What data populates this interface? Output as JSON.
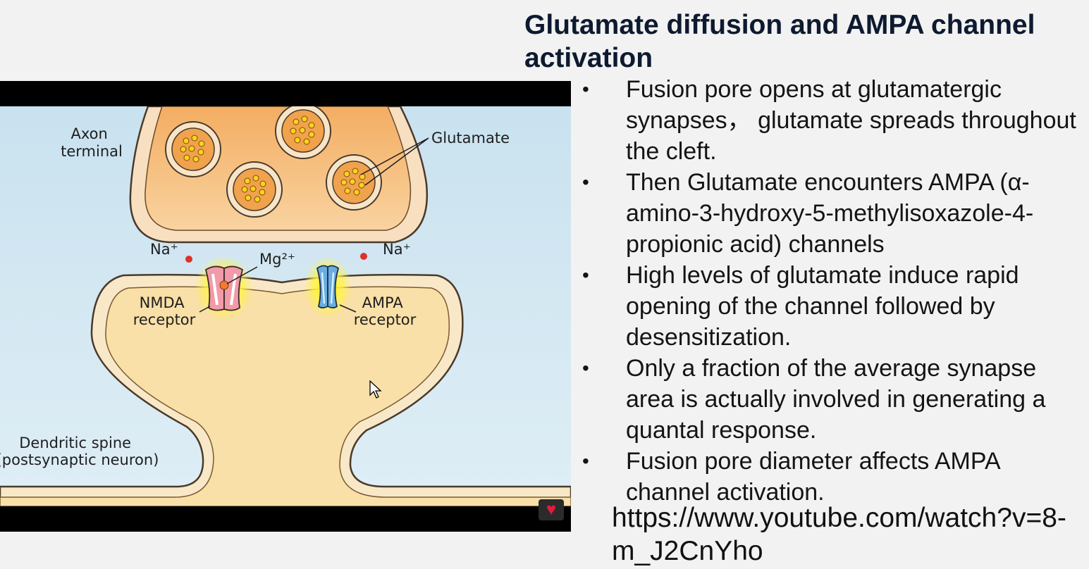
{
  "slide": {
    "title": "Glutamate diffusion and AMPA channel activation",
    "bullets": [
      "Fusion pore opens at glutamatergic synapses， glutamate spreads throughout the cleft.",
      "Then Glutamate encounters AMPA (α-amino-3-hydroxy-5-methylisoxazole-4-propionic acid) channels",
      "High levels of glutamate induce rapid opening of the channel followed by desensitization.",
      "Only a fraction of the average synapse area is actually involved in generating a quantal response.",
      "Fusion pore diameter affects AMPA channel activation."
    ],
    "link": "https://www.youtube.com/watch?v=8-m_J2CnYho"
  },
  "diagram": {
    "axon_terminal": [
      "Axon",
      "terminal"
    ],
    "glutamate": "Glutamate",
    "na_left": "Na⁺",
    "na_right": "Na⁺",
    "mg": "Mg²⁺",
    "nmda": [
      "NMDA",
      "receptor"
    ],
    "ampa": [
      "AMPA",
      "receptor"
    ],
    "dendritic": [
      "Dendritic spine",
      "(postsynaptic neuron)"
    ]
  },
  "icons": {
    "heart": "heart-icon",
    "cursor": "mouse-cursor-icon"
  }
}
